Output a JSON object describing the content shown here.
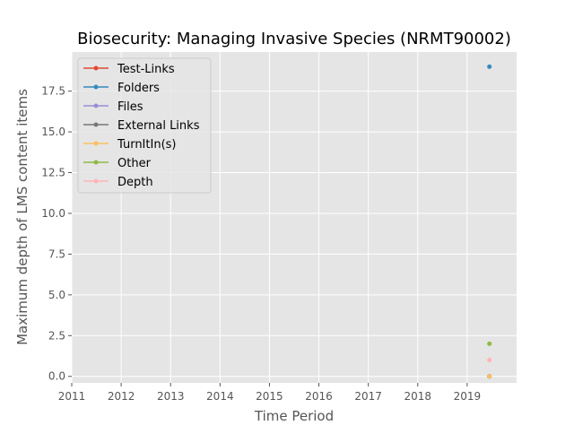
{
  "chart_data": {
    "type": "line",
    "title": "Biosecurity: Managing Invasive Species (NRMT90002)",
    "xlabel": "Time Period",
    "ylabel": "Maximum depth of LMS content items",
    "xlim": [
      2011,
      2020
    ],
    "ylim": [
      -0.4,
      19.9
    ],
    "x_ticks": [
      "2011",
      "2012",
      "2013",
      "2014",
      "2015",
      "2016",
      "2017",
      "2018",
      "2019"
    ],
    "y_ticks": [
      "0.0",
      "2.5",
      "5.0",
      "7.5",
      "10.0",
      "12.5",
      "15.0",
      "17.5"
    ],
    "grid": true,
    "legend_position": "upper-left",
    "series": [
      {
        "name": "Test-Links",
        "color": "#E24A33",
        "points": [
          {
            "x": 2019.45,
            "y": 0
          }
        ]
      },
      {
        "name": "Folders",
        "color": "#348ABD",
        "points": [
          {
            "x": 2019.45,
            "y": 19
          }
        ]
      },
      {
        "name": "Files",
        "color": "#988ED5",
        "points": [
          {
            "x": 2019.45,
            "y": 0
          }
        ]
      },
      {
        "name": "External Links",
        "color": "#777777",
        "points": [
          {
            "x": 2019.45,
            "y": 0
          }
        ]
      },
      {
        "name": "TurnItIn(s)",
        "color": "#FBC15E",
        "points": [
          {
            "x": 2019.45,
            "y": 0
          }
        ]
      },
      {
        "name": "Other",
        "color": "#8EBA42",
        "points": [
          {
            "x": 2019.45,
            "y": 2
          }
        ]
      },
      {
        "name": "Depth",
        "color": "#FFB5B8",
        "points": [
          {
            "x": 2019.45,
            "y": 1
          }
        ]
      }
    ]
  }
}
